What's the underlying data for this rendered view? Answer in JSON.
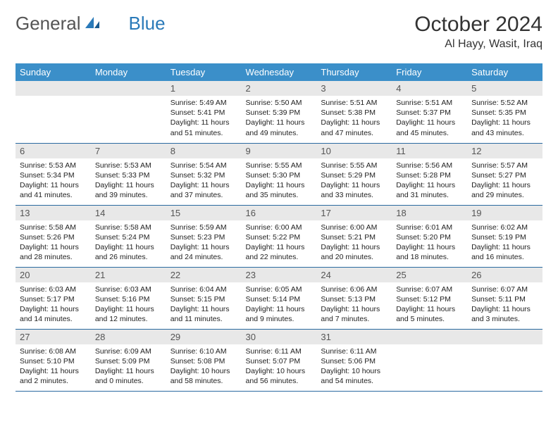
{
  "logo": {
    "text_a": "General",
    "text_b": "Blue"
  },
  "title": "October 2024",
  "location": "Al Hayy, Wasit, Iraq",
  "day_headers": [
    "Sunday",
    "Monday",
    "Tuesday",
    "Wednesday",
    "Thursday",
    "Friday",
    "Saturday"
  ],
  "colors": {
    "header_bg": "#3b8fc9",
    "header_text": "#ffffff",
    "daynum_bg": "#e8e8e8",
    "row_border": "#2a6aa0",
    "logo_gray": "#555555",
    "logo_blue": "#2a7ab9"
  },
  "typography": {
    "title_fontsize": 30,
    "location_fontsize": 16,
    "header_fontsize": 13,
    "cell_fontsize": 10.5
  },
  "weeks": [
    [
      null,
      null,
      {
        "n": "1",
        "sunrise": "5:49 AM",
        "sunset": "5:41 PM",
        "dl": "11 hours and 51 minutes."
      },
      {
        "n": "2",
        "sunrise": "5:50 AM",
        "sunset": "5:39 PM",
        "dl": "11 hours and 49 minutes."
      },
      {
        "n": "3",
        "sunrise": "5:51 AM",
        "sunset": "5:38 PM",
        "dl": "11 hours and 47 minutes."
      },
      {
        "n": "4",
        "sunrise": "5:51 AM",
        "sunset": "5:37 PM",
        "dl": "11 hours and 45 minutes."
      },
      {
        "n": "5",
        "sunrise": "5:52 AM",
        "sunset": "5:35 PM",
        "dl": "11 hours and 43 minutes."
      }
    ],
    [
      {
        "n": "6",
        "sunrise": "5:53 AM",
        "sunset": "5:34 PM",
        "dl": "11 hours and 41 minutes."
      },
      {
        "n": "7",
        "sunrise": "5:53 AM",
        "sunset": "5:33 PM",
        "dl": "11 hours and 39 minutes."
      },
      {
        "n": "8",
        "sunrise": "5:54 AM",
        "sunset": "5:32 PM",
        "dl": "11 hours and 37 minutes."
      },
      {
        "n": "9",
        "sunrise": "5:55 AM",
        "sunset": "5:30 PM",
        "dl": "11 hours and 35 minutes."
      },
      {
        "n": "10",
        "sunrise": "5:55 AM",
        "sunset": "5:29 PM",
        "dl": "11 hours and 33 minutes."
      },
      {
        "n": "11",
        "sunrise": "5:56 AM",
        "sunset": "5:28 PM",
        "dl": "11 hours and 31 minutes."
      },
      {
        "n": "12",
        "sunrise": "5:57 AM",
        "sunset": "5:27 PM",
        "dl": "11 hours and 29 minutes."
      }
    ],
    [
      {
        "n": "13",
        "sunrise": "5:58 AM",
        "sunset": "5:26 PM",
        "dl": "11 hours and 28 minutes."
      },
      {
        "n": "14",
        "sunrise": "5:58 AM",
        "sunset": "5:24 PM",
        "dl": "11 hours and 26 minutes."
      },
      {
        "n": "15",
        "sunrise": "5:59 AM",
        "sunset": "5:23 PM",
        "dl": "11 hours and 24 minutes."
      },
      {
        "n": "16",
        "sunrise": "6:00 AM",
        "sunset": "5:22 PM",
        "dl": "11 hours and 22 minutes."
      },
      {
        "n": "17",
        "sunrise": "6:00 AM",
        "sunset": "5:21 PM",
        "dl": "11 hours and 20 minutes."
      },
      {
        "n": "18",
        "sunrise": "6:01 AM",
        "sunset": "5:20 PM",
        "dl": "11 hours and 18 minutes."
      },
      {
        "n": "19",
        "sunrise": "6:02 AM",
        "sunset": "5:19 PM",
        "dl": "11 hours and 16 minutes."
      }
    ],
    [
      {
        "n": "20",
        "sunrise": "6:03 AM",
        "sunset": "5:17 PM",
        "dl": "11 hours and 14 minutes."
      },
      {
        "n": "21",
        "sunrise": "6:03 AM",
        "sunset": "5:16 PM",
        "dl": "11 hours and 12 minutes."
      },
      {
        "n": "22",
        "sunrise": "6:04 AM",
        "sunset": "5:15 PM",
        "dl": "11 hours and 11 minutes."
      },
      {
        "n": "23",
        "sunrise": "6:05 AM",
        "sunset": "5:14 PM",
        "dl": "11 hours and 9 minutes."
      },
      {
        "n": "24",
        "sunrise": "6:06 AM",
        "sunset": "5:13 PM",
        "dl": "11 hours and 7 minutes."
      },
      {
        "n": "25",
        "sunrise": "6:07 AM",
        "sunset": "5:12 PM",
        "dl": "11 hours and 5 minutes."
      },
      {
        "n": "26",
        "sunrise": "6:07 AM",
        "sunset": "5:11 PM",
        "dl": "11 hours and 3 minutes."
      }
    ],
    [
      {
        "n": "27",
        "sunrise": "6:08 AM",
        "sunset": "5:10 PM",
        "dl": "11 hours and 2 minutes."
      },
      {
        "n": "28",
        "sunrise": "6:09 AM",
        "sunset": "5:09 PM",
        "dl": "11 hours and 0 minutes."
      },
      {
        "n": "29",
        "sunrise": "6:10 AM",
        "sunset": "5:08 PM",
        "dl": "10 hours and 58 minutes."
      },
      {
        "n": "30",
        "sunrise": "6:11 AM",
        "sunset": "5:07 PM",
        "dl": "10 hours and 56 minutes."
      },
      {
        "n": "31",
        "sunrise": "6:11 AM",
        "sunset": "5:06 PM",
        "dl": "10 hours and 54 minutes."
      },
      null,
      null
    ]
  ],
  "labels": {
    "sunrise": "Sunrise:",
    "sunset": "Sunset:",
    "daylight": "Daylight:"
  }
}
